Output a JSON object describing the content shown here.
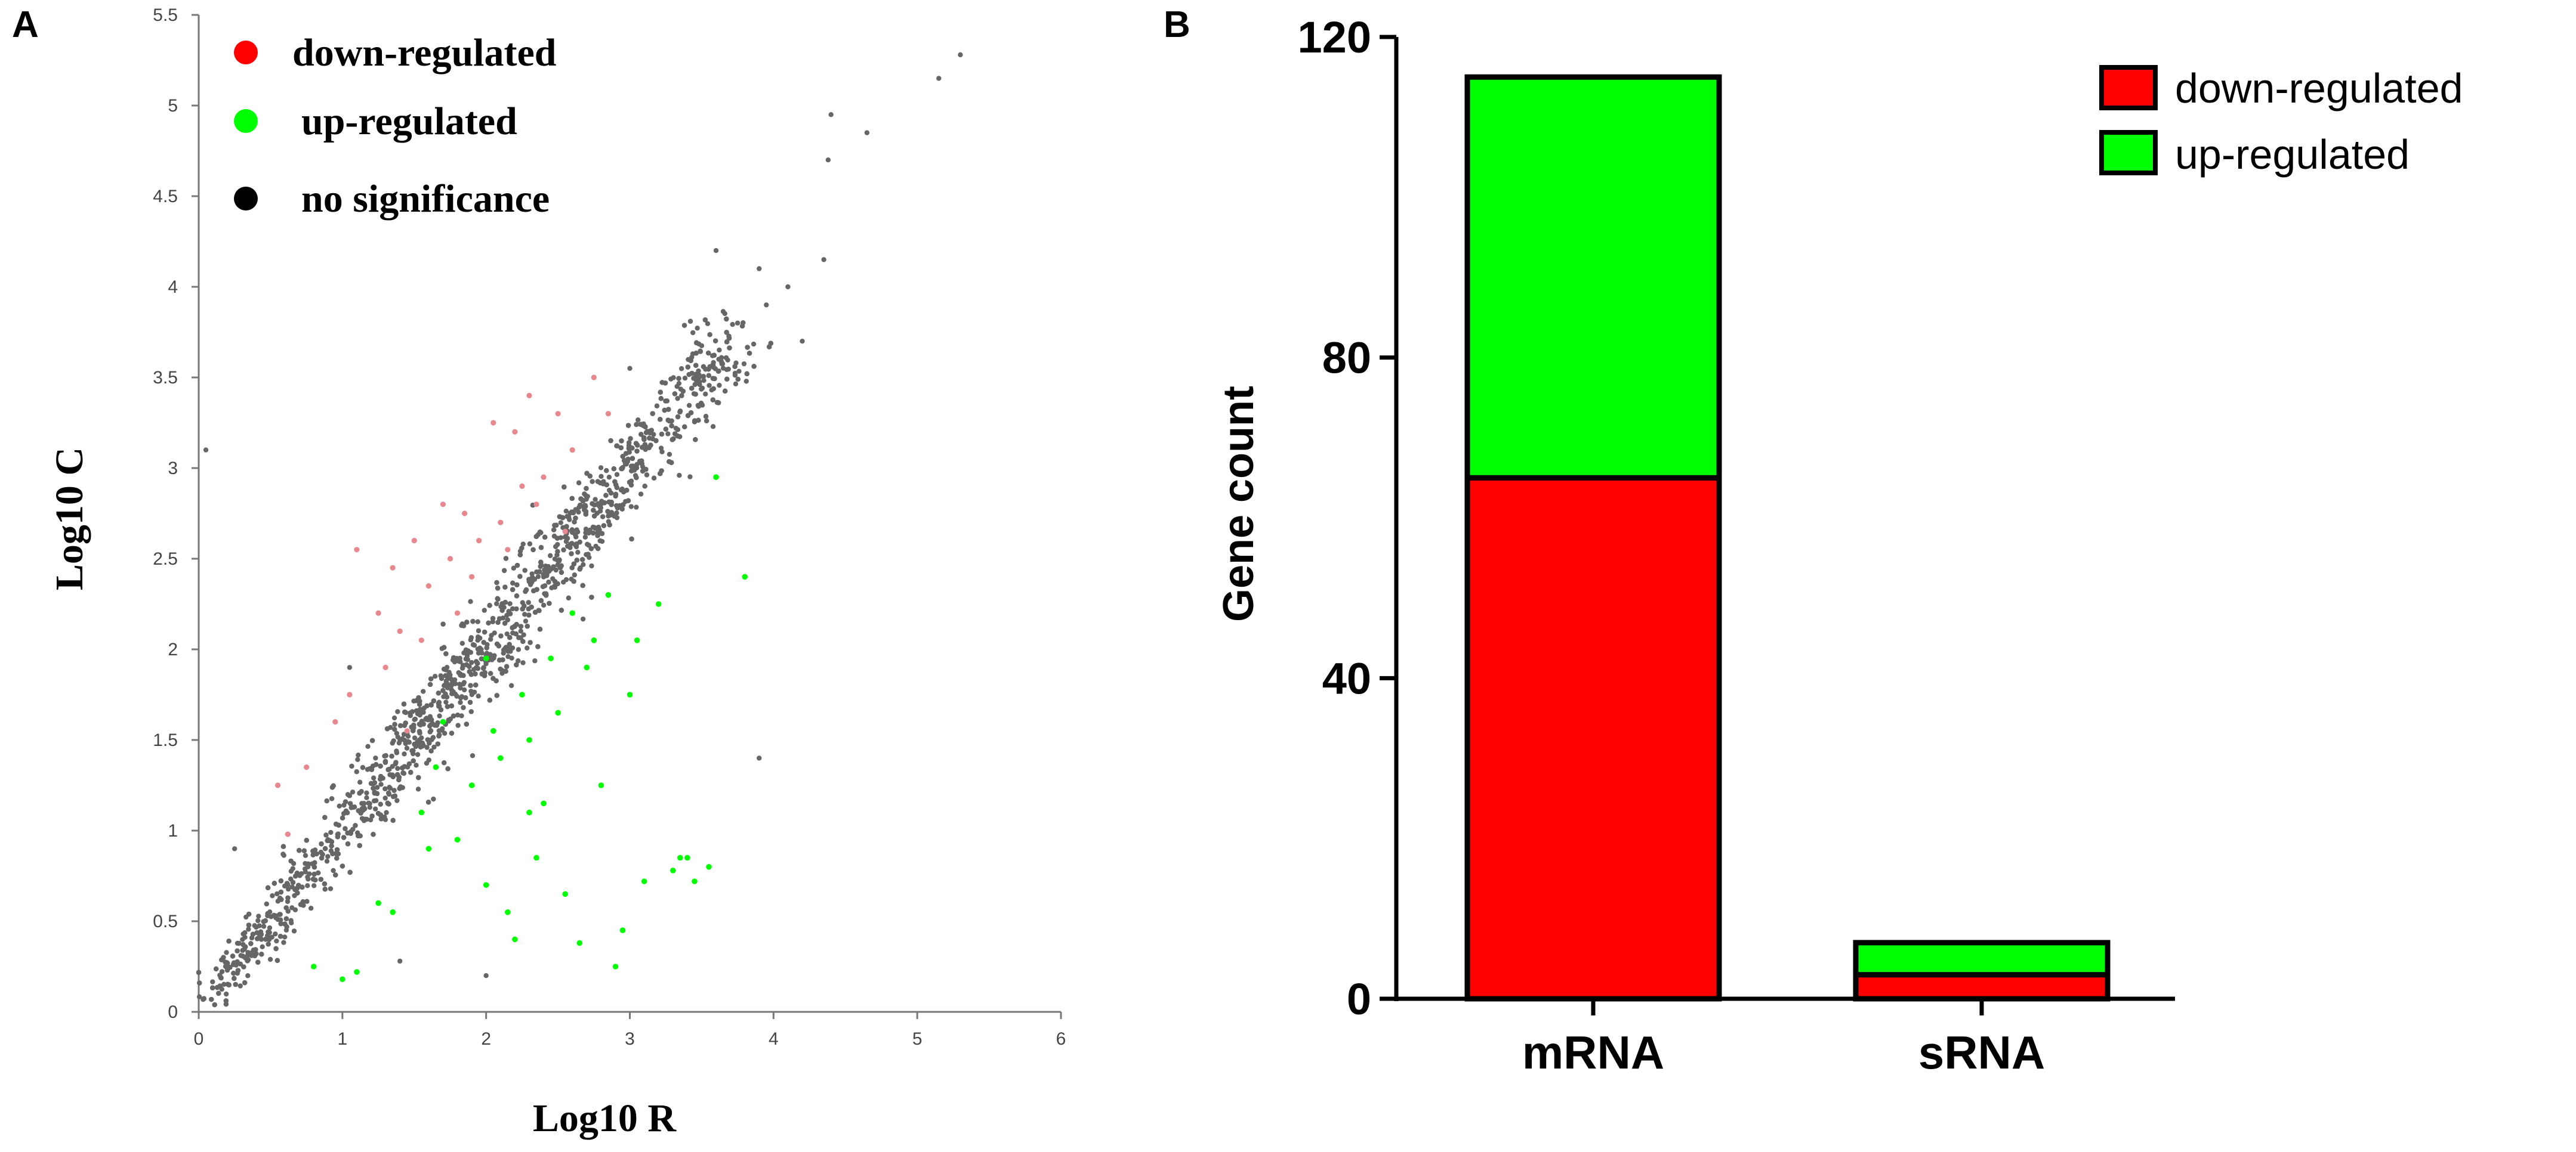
{
  "panels": {
    "a_label": "A",
    "b_label": "B"
  },
  "colors": {
    "down": "#ff0000",
    "up": "#00ff00",
    "none": "#666666",
    "down_dot": "#e8888e",
    "axis": "#777777",
    "legend_black": "#000000"
  },
  "chart_data": [
    {
      "type": "scatter",
      "panel": "A",
      "xlabel": "Log10 R",
      "ylabel": "Log10 C",
      "xlim": [
        0,
        6
      ],
      "ylim": [
        0,
        5.5
      ],
      "x_ticks": [
        "0",
        "1",
        "2",
        "3",
        "4",
        "5",
        "6"
      ],
      "y_ticks": [
        "0",
        "0.5",
        "1",
        "1.5",
        "2",
        "2.5",
        "3",
        "3.5",
        "4",
        "4.5",
        "5",
        "5.5"
      ],
      "legend": {
        "position": "top-left",
        "items": [
          {
            "label": "down-regulated",
            "color": "#ff0000"
          },
          {
            "label": "up-regulated",
            "color": "#00ff00"
          },
          {
            "label": "no significance",
            "color": "#000000"
          }
        ]
      },
      "series": [
        {
          "name": "down-regulated",
          "color": "#ff0000",
          "points": [
            [
              0.55,
              1.25
            ],
            [
              0.62,
              0.98
            ],
            [
              0.75,
              1.35
            ],
            [
              0.95,
              1.6
            ],
            [
              1.05,
              1.75
            ],
            [
              1.1,
              2.55
            ],
            [
              1.25,
              2.2
            ],
            [
              1.35,
              2.45
            ],
            [
              1.4,
              2.1
            ],
            [
              1.5,
              2.6
            ],
            [
              1.55,
              2.05
            ],
            [
              1.6,
              2.35
            ],
            [
              1.7,
              2.8
            ],
            [
              1.75,
              2.5
            ],
            [
              1.8,
              2.2
            ],
            [
              1.85,
              2.75
            ],
            [
              1.9,
              2.4
            ],
            [
              1.95,
              2.6
            ],
            [
              2.05,
              3.25
            ],
            [
              2.1,
              2.7
            ],
            [
              2.15,
              2.55
            ],
            [
              2.2,
              3.2
            ],
            [
              2.25,
              2.9
            ],
            [
              2.3,
              3.4
            ],
            [
              2.35,
              2.8
            ],
            [
              2.4,
              2.95
            ],
            [
              2.5,
              3.3
            ],
            [
              2.55,
              2.65
            ],
            [
              2.6,
              3.1
            ],
            [
              2.75,
              3.5
            ],
            [
              2.85,
              3.3
            ],
            [
              1.45,
              1.55
            ],
            [
              1.3,
              1.9
            ]
          ]
        },
        {
          "name": "up-regulated",
          "color": "#00ff00",
          "points": [
            [
              0.8,
              0.25
            ],
            [
              1.0,
              0.18
            ],
            [
              1.1,
              0.22
            ],
            [
              1.25,
              0.6
            ],
            [
              1.35,
              0.55
            ],
            [
              1.55,
              1.1
            ],
            [
              1.65,
              1.35
            ],
            [
              1.8,
              0.95
            ],
            [
              1.9,
              1.25
            ],
            [
              2.0,
              0.7
            ],
            [
              2.05,
              1.55
            ],
            [
              2.1,
              1.4
            ],
            [
              2.15,
              0.55
            ],
            [
              2.2,
              0.4
            ],
            [
              2.25,
              1.75
            ],
            [
              2.3,
              1.5
            ],
            [
              2.35,
              0.85
            ],
            [
              2.4,
              1.15
            ],
            [
              2.45,
              1.95
            ],
            [
              2.5,
              1.65
            ],
            [
              2.55,
              0.65
            ],
            [
              2.6,
              2.2
            ],
            [
              2.65,
              0.38
            ],
            [
              2.7,
              1.9
            ],
            [
              2.75,
              2.05
            ],
            [
              2.8,
              1.25
            ],
            [
              2.85,
              2.3
            ],
            [
              2.9,
              0.25
            ],
            [
              2.95,
              0.45
            ],
            [
              3.0,
              1.75
            ],
            [
              3.05,
              2.05
            ],
            [
              3.1,
              0.72
            ],
            [
              3.2,
              2.25
            ],
            [
              3.3,
              0.78
            ],
            [
              3.35,
              0.85
            ],
            [
              3.4,
              0.85
            ],
            [
              3.45,
              0.72
            ],
            [
              3.55,
              0.8
            ],
            [
              3.6,
              2.95
            ],
            [
              3.8,
              2.4
            ],
            [
              1.6,
              0.9
            ],
            [
              1.7,
              1.6
            ],
            [
              2.0,
              1.95
            ],
            [
              2.3,
              1.1
            ]
          ]
        },
        {
          "name": "no significance",
          "color": "#666666",
          "points": "dense cloud along y = x from (0,0) to (5.3,5.3), with scattered outliers"
        }
      ]
    },
    {
      "type": "bar",
      "panel": "B",
      "stacked": true,
      "categories": [
        "mRNA",
        "sRNA"
      ],
      "ylabel": "Gene count",
      "ylim": [
        0,
        120
      ],
      "y_ticks": [
        "0",
        "40",
        "80",
        "120"
      ],
      "legend": {
        "position": "top-right",
        "items": [
          {
            "label": "down-regulated",
            "color": "#ff0000"
          },
          {
            "label": "up-regulated",
            "color": "#00ff00"
          }
        ]
      },
      "series": [
        {
          "name": "down-regulated",
          "color": "#ff0000",
          "values": [
            65,
            3
          ]
        },
        {
          "name": "up-regulated",
          "color": "#00ff00",
          "values": [
            50,
            4
          ]
        }
      ]
    }
  ]
}
